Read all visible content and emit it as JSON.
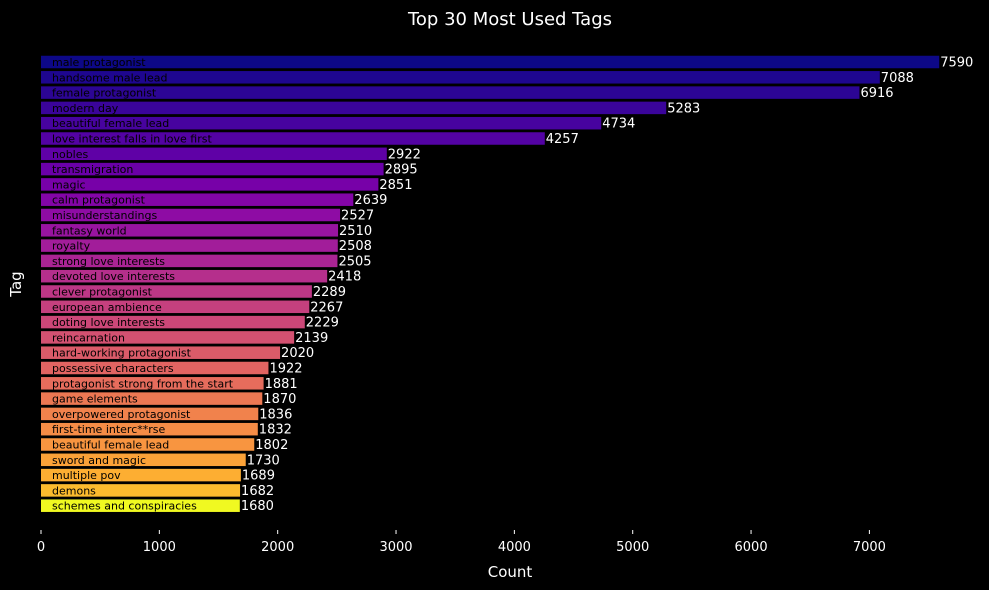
{
  "chart_data": {
    "type": "bar",
    "orientation": "horizontal",
    "title": "Top 30 Most Used Tags",
    "xlabel": "Count",
    "ylabel": "Tag",
    "xlim": [
      0,
      7960
    ],
    "xticks": [
      0,
      1000,
      2000,
      3000,
      4000,
      5000,
      6000,
      7000
    ],
    "grid": false,
    "background": "#000000",
    "colormap": "plasma",
    "colors": [
      "#0d0887",
      "#1e068f",
      "#2c0594",
      "#3a049a",
      "#47039f",
      "#5302a3",
      "#5f01a6",
      "#6a00a8",
      "#7701a8",
      "#8305a7",
      "#8e0ca4",
      "#9814a0",
      "#a21d9a",
      "#ab2494",
      "#b52f8c",
      "#bd3786",
      "#c5407e",
      "#cc4778",
      "#d35171",
      "#da5b69",
      "#e16462",
      "#e66c5c",
      "#ec7853",
      "#f1824c",
      "#f58c46",
      "#f89540",
      "#fba238",
      "#fdae32",
      "#fcbb2e",
      "#f0f921"
    ],
    "categories": [
      "male protagonist",
      "handsome male lead",
      "female protagonist",
      "modern day",
      "beautiful female lead",
      "love interest falls in love first",
      "nobles",
      "transmigration",
      "magic",
      "calm protagonist",
      "misunderstandings",
      "fantasy world",
      "royalty",
      "strong love interests",
      "devoted love interests",
      "clever protagonist",
      "european ambience",
      "doting love interests",
      "reincarnation",
      "hard-working protagonist",
      "possessive characters",
      "protagonist strong from the start",
      "game elements",
      "overpowered protagonist",
      "first-time interc**rse",
      "beautiful female lead",
      "sword and magic",
      "multiple pov",
      "demons",
      "schemes and conspiracies"
    ],
    "values": [
      7590,
      7088,
      6916,
      5283,
      4734,
      4257,
      2922,
      2895,
      2851,
      2639,
      2527,
      2510,
      2508,
      2505,
      2418,
      2289,
      2267,
      2229,
      2139,
      2020,
      1922,
      1881,
      1870,
      1836,
      1832,
      1802,
      1730,
      1689,
      1682,
      1680
    ]
  }
}
